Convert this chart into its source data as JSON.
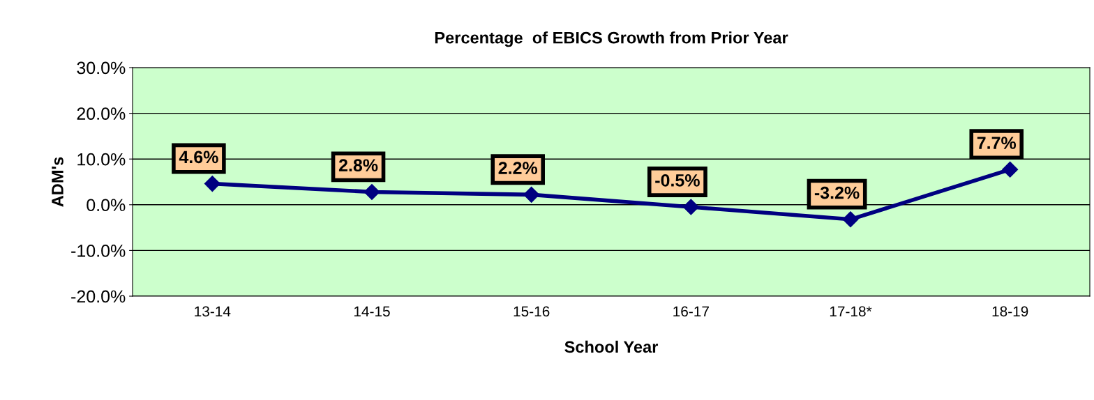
{
  "chart_data": {
    "type": "line",
    "title": "Percentage  of EBICS Growth from Prior Year",
    "xlabel": "School Year",
    "ylabel": "ADM's",
    "categories": [
      "13-14",
      "14-15",
      "15-16",
      "16-17",
      "17-18*",
      "18-19"
    ],
    "series": [
      {
        "color": "#000080",
        "values": [
          4.6,
          2.8,
          2.2,
          -0.5,
          -3.2,
          7.7
        ],
        "value_labels": [
          "4.6%",
          "2.8%",
          "2.2%",
          "-0.5%",
          "-3.2%",
          "7.7%"
        ]
      }
    ],
    "ylim": [
      -20,
      30
    ],
    "yticks": [
      {
        "value": -20,
        "label": "-20.0%"
      },
      {
        "value": -10,
        "label": "-10.0%"
      },
      {
        "value": 0,
        "label": "0.0%"
      },
      {
        "value": 10,
        "label": "10.0%"
      },
      {
        "value": 20,
        "label": "20.0%"
      },
      {
        "value": 30,
        "label": "30.0%"
      }
    ],
    "grid": "y",
    "marker": "diamond",
    "line_style": "solid",
    "legend": false
  }
}
